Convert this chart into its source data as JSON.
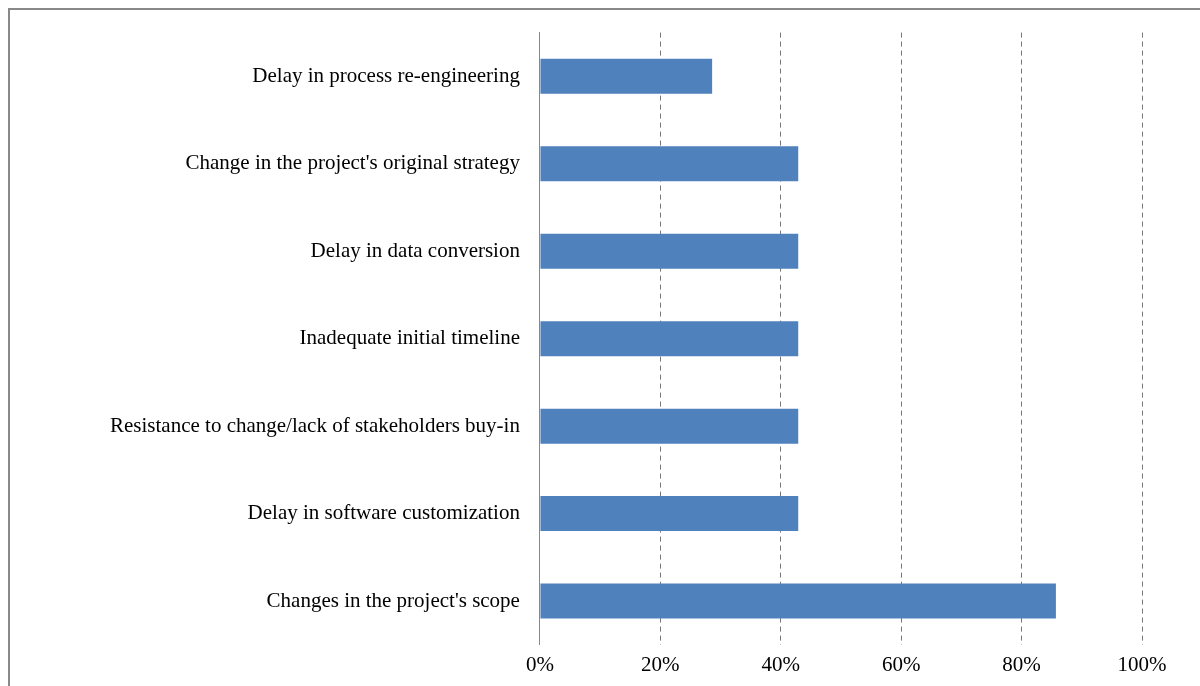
{
  "chart_data": {
    "type": "bar",
    "orientation": "horizontal",
    "categories": [
      "Delay in process re-engineering",
      "Change in the project's original strategy",
      "Delay in data conversion",
      "Inadequate initial timeline",
      "Resistance to change/lack of stakeholders buy-in",
      "Delay in software customization",
      "Changes in the project's scope"
    ],
    "values": [
      28.6,
      42.9,
      42.9,
      42.9,
      42.9,
      42.9,
      85.7
    ],
    "color": "#4f81bd",
    "xlim": [
      0,
      100
    ],
    "xticks": [
      {
        "value": 0,
        "label": "0%"
      },
      {
        "value": 20,
        "label": "20%"
      },
      {
        "value": 40,
        "label": "40%"
      },
      {
        "value": 60,
        "label": "60%"
      },
      {
        "value": 80,
        "label": "80%"
      },
      {
        "value": 100,
        "label": "100%"
      }
    ],
    "grid": "x",
    "legend": false
  }
}
